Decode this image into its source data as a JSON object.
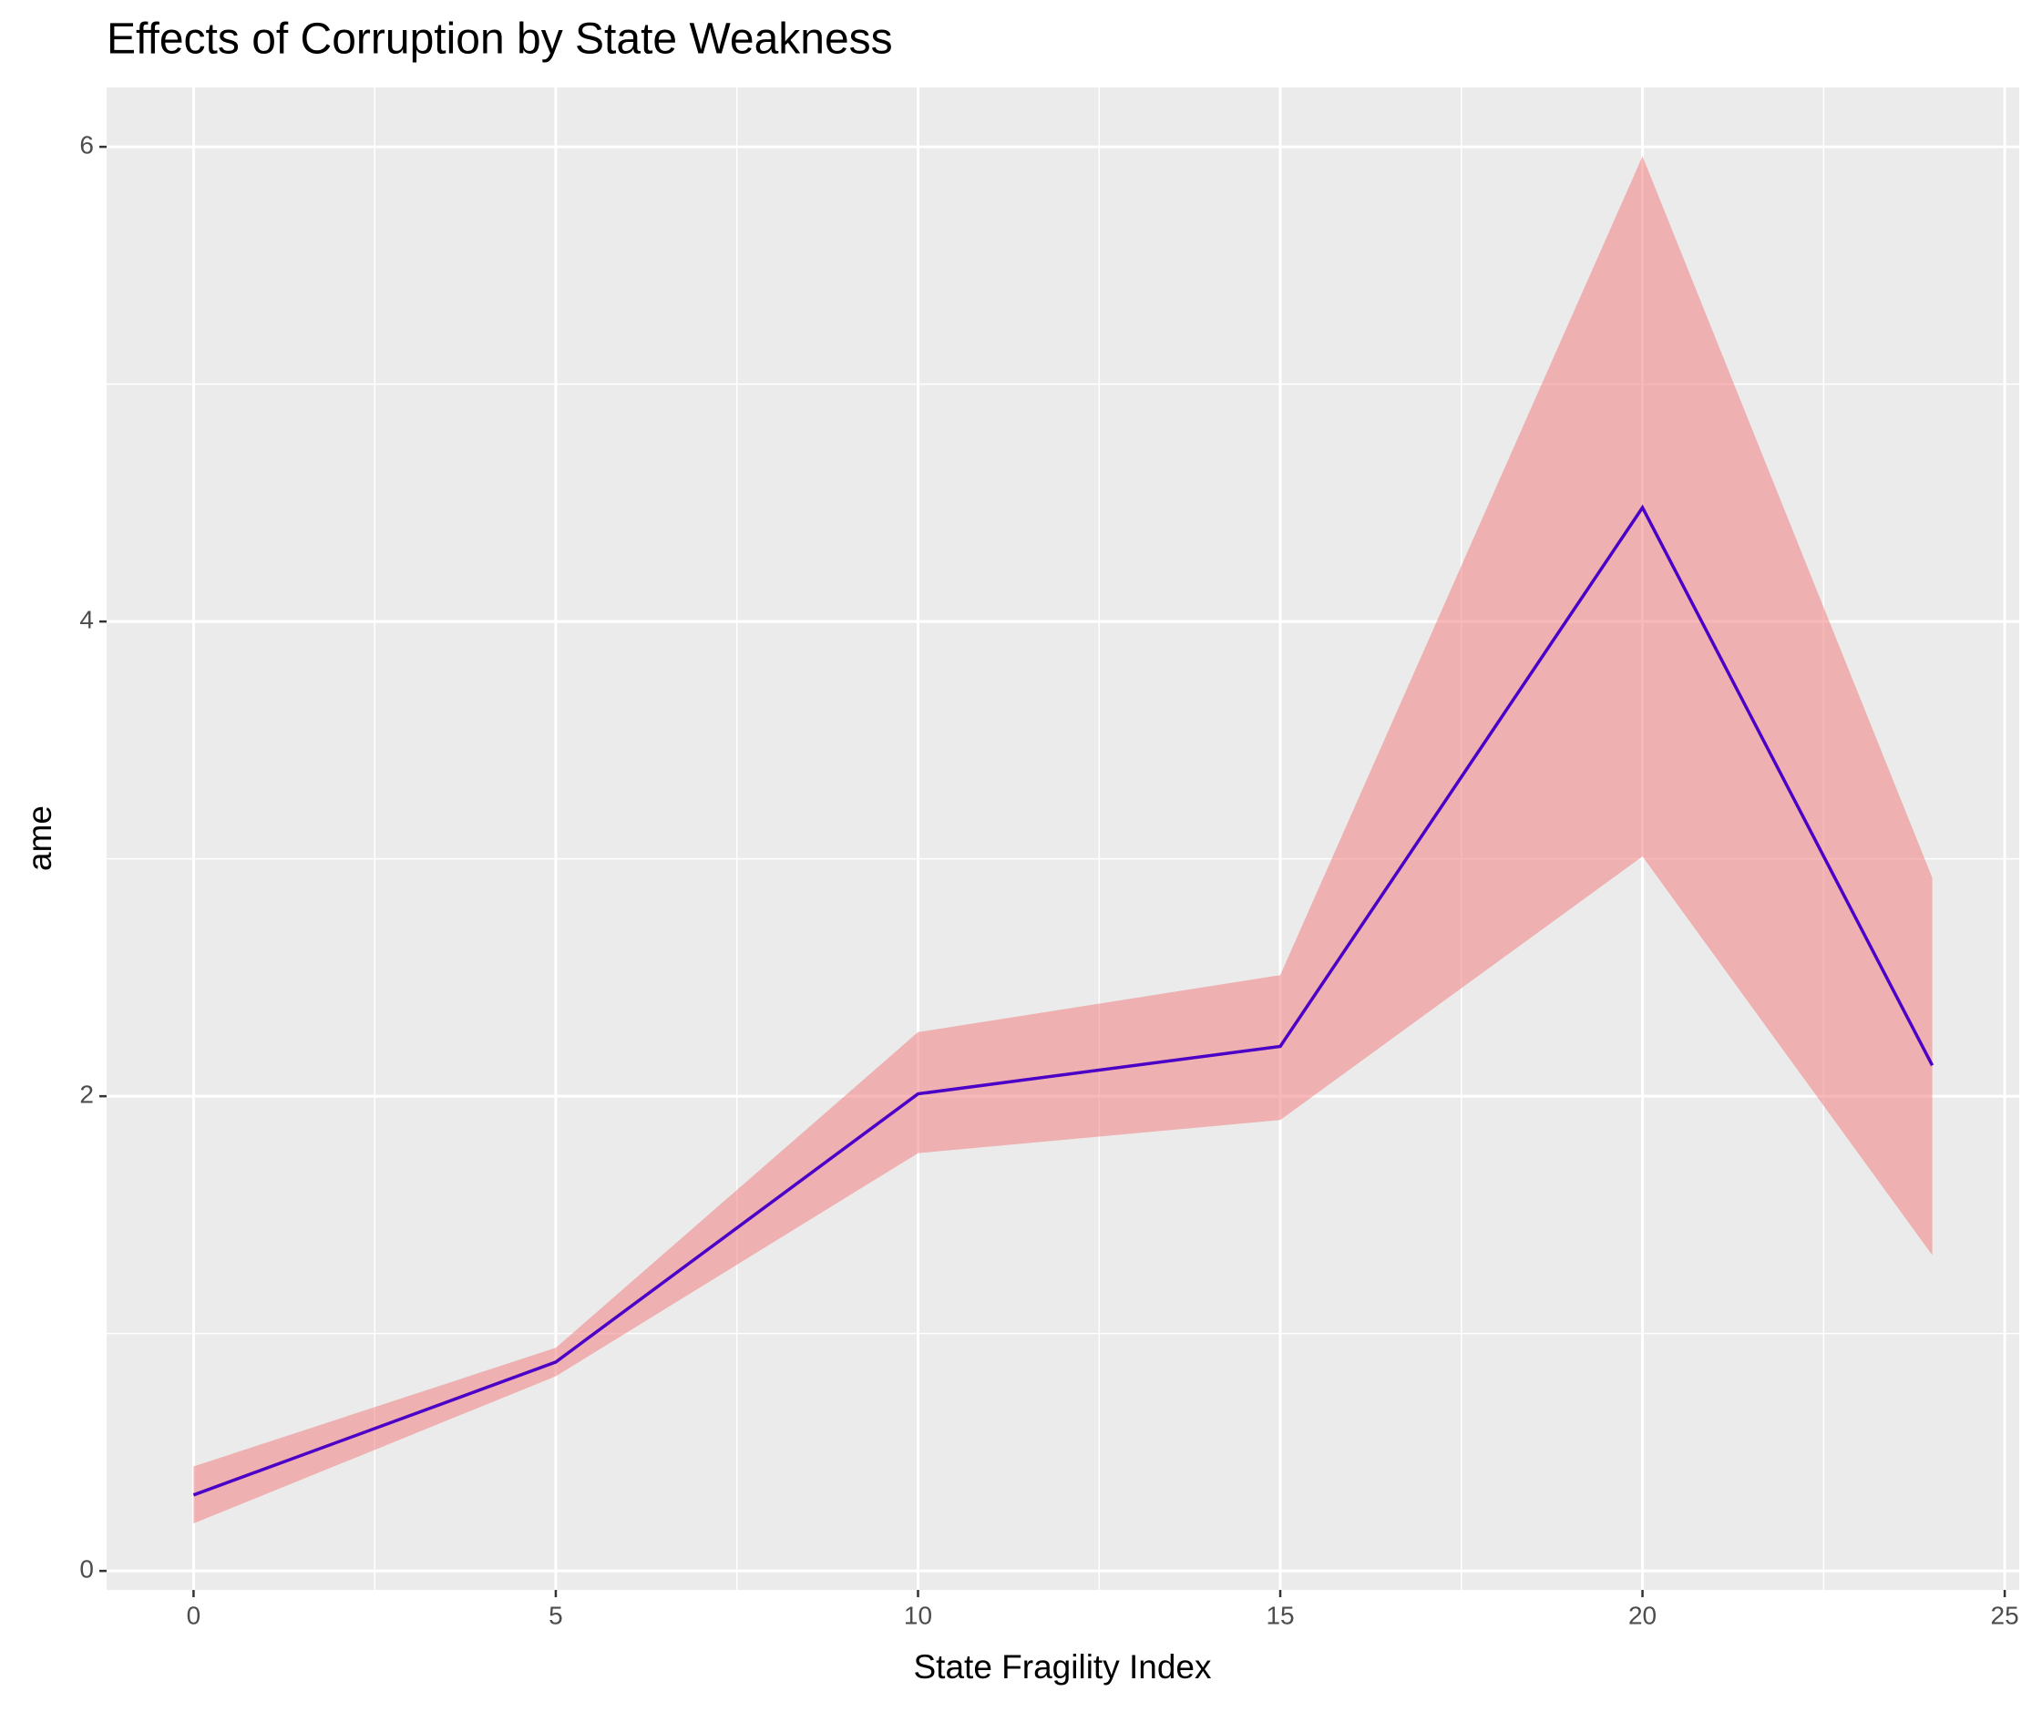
{
  "chart_data": {
    "type": "line",
    "title": "Effects of Corruption by State Weakness",
    "x_label": "State Fragility Index",
    "y_label": "ame",
    "x": [
      0,
      5,
      10,
      15,
      20,
      24
    ],
    "values": [
      0.32,
      0.88,
      2.01,
      2.21,
      4.48,
      2.13
    ],
    "lower": [
      0.2,
      0.82,
      1.76,
      1.9,
      3.01,
      1.33
    ],
    "upper": [
      0.44,
      0.94,
      2.27,
      2.51,
      5.96,
      2.92
    ],
    "color": "#4b00c8",
    "band_color": "#f08080",
    "xlim": [
      -1.2,
      25.2
    ],
    "ylim": [
      -0.08,
      6.25
    ],
    "xticks": [
      0,
      5,
      10,
      15,
      20,
      25
    ],
    "yticks": [
      0,
      2,
      4,
      6
    ],
    "x_minor_grid": [
      2.5,
      7.5,
      12.5,
      17.5,
      22.5
    ],
    "y_minor_grid": [
      1,
      3,
      5
    ],
    "grid": true
  }
}
